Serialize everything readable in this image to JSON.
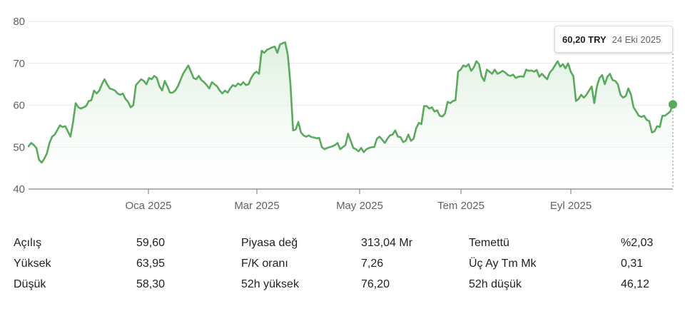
{
  "tooltip": {
    "price": "60,20 TRY",
    "date": "24 Eki 2025"
  },
  "colors": {
    "line": "#5aaa5e",
    "fill_top": "#d9eedb",
    "grid": "#e8eaed",
    "axis": "#80868b"
  },
  "chart_data": {
    "type": "area",
    "ylim": [
      40,
      80
    ],
    "yticks": [
      "40",
      "50",
      "60",
      "70",
      "80"
    ],
    "xticks": [
      "Oca 2025",
      "Mar 2025",
      "May 2025",
      "Tem 2025",
      "Eyl 2025"
    ],
    "grid": true,
    "legend": "none",
    "series": [
      {
        "values": [
          50.2,
          51,
          50.5,
          49.8,
          47,
          46.3,
          47.2,
          48.5,
          51,
          52.5,
          53,
          54.1,
          55.2,
          54.8,
          55,
          53.8,
          52.5,
          56,
          60.5,
          59.5,
          59.2,
          59.5,
          59.8,
          61,
          61.2,
          63.5,
          62.8,
          63.5,
          65,
          66.2,
          65,
          64,
          63.8,
          63.5,
          62.8,
          62.5,
          62.8,
          61.5,
          60.8,
          59.5,
          60,
          64.8,
          65.5,
          66.2,
          65.8,
          65,
          66.5,
          66.2,
          67,
          66.5,
          64.5,
          63.5,
          65.8,
          64.5,
          63,
          63,
          63.5,
          64.5,
          66,
          67.5,
          68.5,
          69.5,
          68,
          66.5,
          66.2,
          67,
          66,
          65.5,
          64.8,
          64,
          65.5,
          65,
          64.5,
          63.5,
          62.8,
          63.5,
          63,
          64,
          64.8,
          64.5,
          65.2,
          64.8,
          65.5,
          64.8,
          65,
          66.5,
          67.5,
          68,
          67.5,
          73,
          72.5,
          73.2,
          73.5,
          73.8,
          74,
          72.5,
          74.5,
          74.8,
          75,
          72,
          65,
          54,
          54.2,
          56,
          53.5,
          52.8,
          52.5,
          52.8,
          52.4,
          52.3,
          52.1,
          52.2,
          50,
          49.5,
          49.8,
          50,
          50.2,
          50.5,
          51,
          49.5,
          50,
          50.5,
          53.2,
          51.5,
          49.8,
          49.5,
          49,
          49.8,
          48.8,
          49.5,
          49.8,
          50,
          50,
          52,
          52.5,
          51.8,
          51,
          52,
          52.8,
          53,
          54,
          52.5,
          52.4,
          51.2,
          51.5,
          53,
          51.5,
          52,
          54.5,
          55.8,
          55.5,
          59.8,
          59.8,
          59.2,
          59.5,
          58.5,
          58.8,
          57.5,
          57.3,
          58,
          60.8,
          60.5,
          61,
          61.2,
          68,
          68.5,
          69.5,
          69.2,
          69.8,
          68.2,
          69,
          70.5,
          69.8,
          66.8,
          65.8,
          68.5,
          68,
          67.5,
          68.5,
          67.5,
          67.8,
          68.2,
          67.8,
          67.2,
          67,
          67.3,
          66.5,
          66.8,
          66.9,
          66.8,
          68.5,
          68.2,
          68.3,
          68,
          68.4,
          66.8,
          67.5,
          66.8,
          66.2,
          67.8,
          68.5,
          69.5,
          70.5,
          69.2,
          69.8,
          68.8,
          70,
          68,
          67,
          61,
          61.5,
          62.5,
          61.8,
          62.5,
          63.5,
          64.5,
          60.5,
          64.5,
          66.5,
          67.2,
          65,
          66.8,
          67.5,
          66,
          65.8,
          65,
          62.5,
          61.8,
          62.2,
          64,
          62.5,
          59.5,
          58.5,
          57.5,
          57.2,
          57.5,
          56.5,
          56.2,
          53.5,
          53.8,
          55,
          54.8,
          57.5,
          57.5,
          58,
          58.5,
          60.2
        ]
      }
    ]
  },
  "stats": [
    {
      "label": "Açılış",
      "value": "59,60",
      "label2": "Piyasa değ",
      "value2": "313,04 Mr",
      "label3": "Temettü",
      "value3": "%2,03"
    },
    {
      "label": "Yüksek",
      "value": "63,95",
      "label2": "F/K oranı",
      "value2": "7,26",
      "label3": "Üç Ay Tm Mk",
      "value3": "0,31"
    },
    {
      "label": "Düşük",
      "value": "58,30",
      "label2": "52h yüksek",
      "value2": "76,20",
      "label3": "52h düşük",
      "value3": "46,12"
    }
  ]
}
